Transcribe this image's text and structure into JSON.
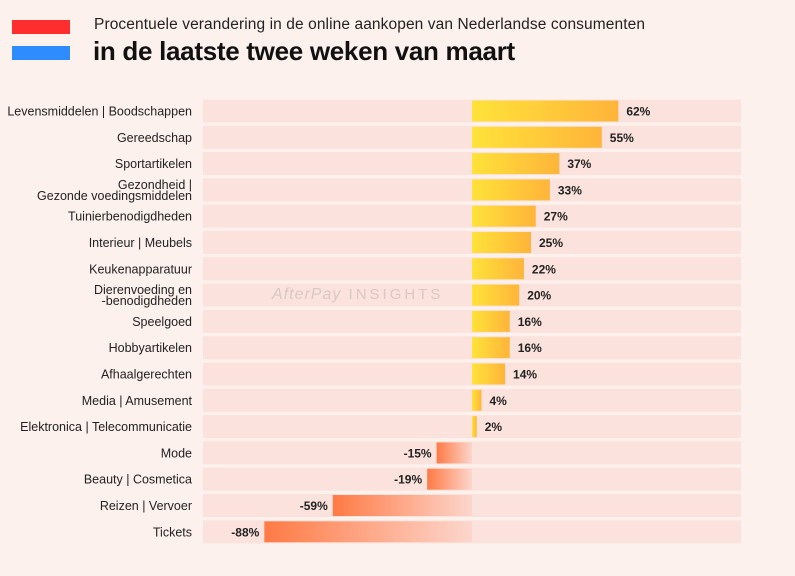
{
  "header": {
    "subtitle": "Procentuele verandering in de online aankopen van Nederlandse consumenten",
    "title": "in de laatste twee weken van maart"
  },
  "watermark": {
    "brand": "AfterPay",
    "suffix": "INSIGHTS"
  },
  "colors": {
    "flag_red": "#ff2e2e",
    "flag_blue": "#2f8cff",
    "row_bg": "#fbe2dc",
    "positive_start": "#ffe23a",
    "positive_end": "#ffb43a",
    "negative_start": "#ff7a45",
    "negative_end": "#fcd6cc"
  },
  "chart_data": {
    "type": "bar",
    "orientation": "horizontal",
    "title": "in de laatste twee weken van maart",
    "subtitle": "Procentuele verandering in de online aankopen van Nederlandse consumenten",
    "xlabel": "",
    "ylabel": "",
    "xlim": [
      -100,
      100
    ],
    "unit": "%",
    "categories": [
      [
        "Levensmiddelen | Boodschappen"
      ],
      [
        "Gereedschap"
      ],
      [
        "Sportartikelen"
      ],
      [
        "Gezondheid |",
        "Gezonde voedingsmiddelen"
      ],
      [
        "Tuinierbenodigdheden"
      ],
      [
        "Interieur | Meubels"
      ],
      [
        "Keukenapparatuur"
      ],
      [
        "Dierenvoeding en",
        "-benodigdheden"
      ],
      [
        "Speelgoed"
      ],
      [
        "Hobbyartikelen"
      ],
      [
        "Afhaalgerechten"
      ],
      [
        "Media | Amusement"
      ],
      [
        "Elektronica | Telecommunicatie"
      ],
      [
        "Mode"
      ],
      [
        "Beauty | Cosmetica"
      ],
      [
        "Reizen | Vervoer"
      ],
      [
        "Tickets"
      ]
    ],
    "values": [
      62,
      55,
      37,
      33,
      27,
      25,
      22,
      20,
      16,
      16,
      14,
      4,
      2,
      -15,
      -19,
      -59,
      -88
    ],
    "value_labels": [
      "62%",
      "55%",
      "37%",
      "33%",
      "27%",
      "25%",
      "22%",
      "20%",
      "16%",
      "16%",
      "14%",
      "4%",
      "2%",
      "-15%",
      "-19%",
      "-59%",
      "-88%"
    ],
    "grid": false,
    "legend": "none"
  }
}
